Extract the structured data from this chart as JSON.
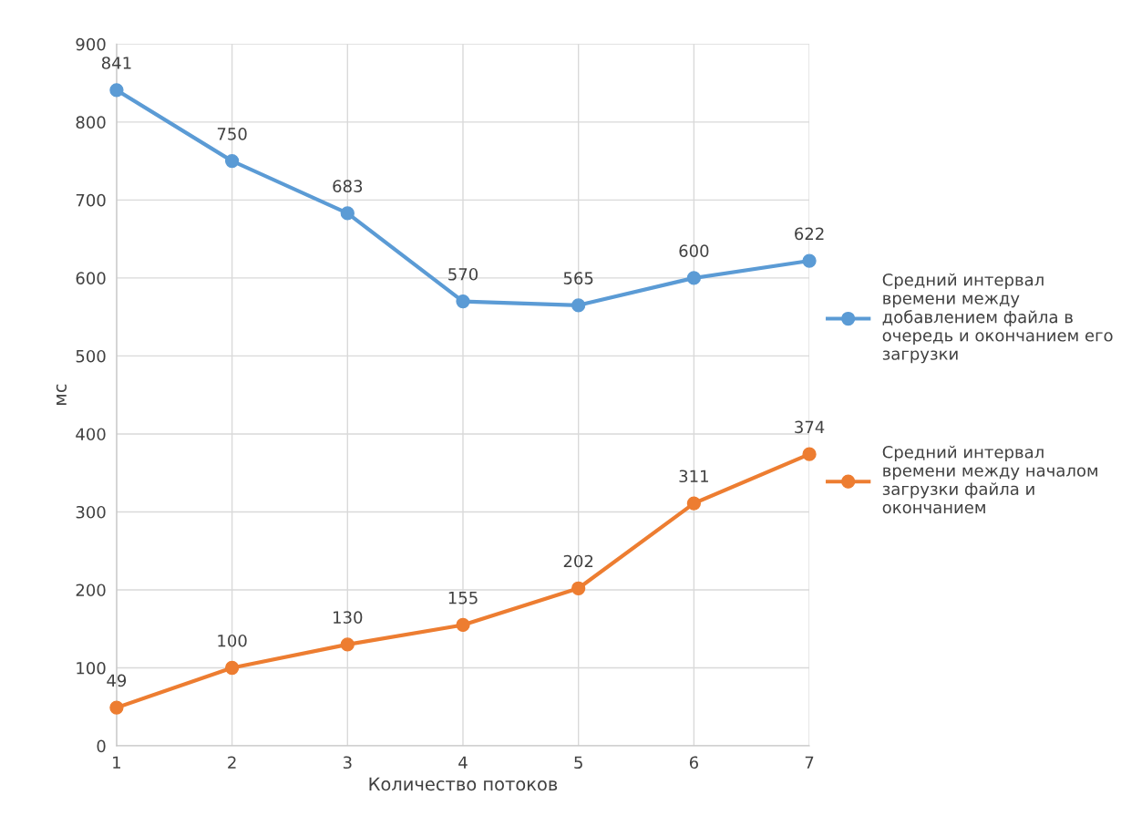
{
  "chart_data": {
    "type": "line",
    "xlabel": "Количество потоков",
    "ylabel": "мс",
    "x": [
      1,
      2,
      3,
      4,
      5,
      6,
      7
    ],
    "series": [
      {
        "name": "Средний интервал\nвремени между\nдобавлением файла в\nочередь и окончанием его\nзагрузки",
        "color": "#5b9bd5",
        "values": [
          841,
          750,
          683,
          570,
          565,
          600,
          622
        ]
      },
      {
        "name": "Средний интервал\nвремени между началом\nзагрузки файла и\nокончанием",
        "color": "#ed7d31",
        "values": [
          49,
          100,
          130,
          155,
          202,
          311,
          374
        ]
      }
    ],
    "xlim": [
      1,
      7
    ],
    "xticks": [
      1,
      2,
      3,
      4,
      5,
      6,
      7
    ],
    "ylim": [
      0,
      900
    ],
    "yticks": [
      0,
      100,
      200,
      300,
      400,
      500,
      600,
      700,
      800,
      900
    ],
    "grid": true,
    "legend": "right",
    "data_labels": true,
    "marker": "circle",
    "line_style": "solid"
  }
}
